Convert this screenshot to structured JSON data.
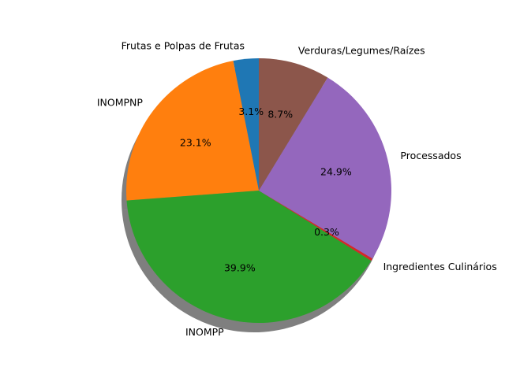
{
  "chart_data": {
    "type": "pie",
    "shadow": true,
    "start_angle_deg": 90,
    "direction": "counterclockwise",
    "slices": [
      {
        "label": "Frutas e Polpas de Frutas",
        "value": 3.1,
        "pct_label": "3.1%",
        "color": "#1f77b4"
      },
      {
        "label": "INOMPNP",
        "value": 23.1,
        "pct_label": "23.1%",
        "color": "#ff7f0e"
      },
      {
        "label": "INOMPP",
        "value": 39.9,
        "pct_label": "39.9%",
        "color": "#2ca02c"
      },
      {
        "label": "Ingredientes Culinários",
        "value": 0.3,
        "pct_label": "0.3%",
        "color": "#d62728"
      },
      {
        "label": "Processados",
        "value": 24.9,
        "pct_label": "24.9%",
        "color": "#9467bd"
      },
      {
        "label": "Verduras/Legumes/Raízes",
        "value": 8.7,
        "pct_label": "8.7%",
        "color": "#8c564b"
      }
    ]
  }
}
